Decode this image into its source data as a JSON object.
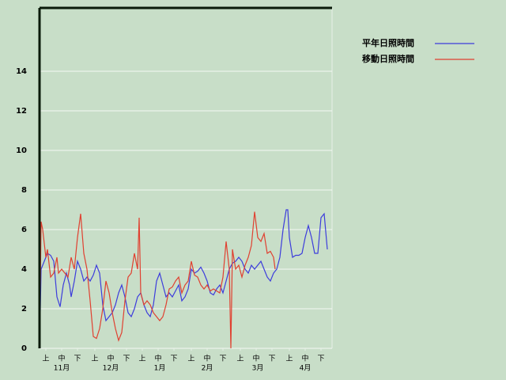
{
  "chart_data": {
    "type": "line",
    "xlim": [
      0,
      185
    ],
    "ylim": [
      0,
      17.2
    ],
    "yticks": [
      0,
      2,
      4,
      6,
      8,
      10,
      12,
      14
    ],
    "grid": true,
    "xticks": [
      {
        "value": 4,
        "label": "上"
      },
      {
        "value": 14,
        "label": "中"
      },
      {
        "value": 24,
        "label": "下"
      },
      {
        "value": 35,
        "label": "上"
      },
      {
        "value": 45,
        "label": "中"
      },
      {
        "value": 55,
        "label": "下"
      },
      {
        "value": 65,
        "label": "上"
      },
      {
        "value": 75,
        "label": "中"
      },
      {
        "value": 85,
        "label": "下"
      },
      {
        "value": 96,
        "label": "上"
      },
      {
        "value": 106,
        "label": "中"
      },
      {
        "value": 116,
        "label": "下"
      },
      {
        "value": 127,
        "label": "上"
      },
      {
        "value": 137,
        "label": "中"
      },
      {
        "value": 147,
        "label": "下"
      },
      {
        "value": 158,
        "label": "上"
      },
      {
        "value": 168,
        "label": "中"
      },
      {
        "value": 178,
        "label": "下"
      }
    ],
    "month_labels": [
      {
        "value": 14,
        "label": "11月"
      },
      {
        "value": 45,
        "label": "12月"
      },
      {
        "value": 76,
        "label": "1月"
      },
      {
        "value": 106,
        "label": "2月"
      },
      {
        "value": 138,
        "label": "3月"
      },
      {
        "value": 168,
        "label": "4月"
      }
    ],
    "legend": "top-right",
    "series": [
      {
        "name": "平年日照時間",
        "color": "#3c3cdc",
        "x": [
          0,
          1,
          3,
          5,
          7,
          9,
          11,
          13,
          15,
          17,
          19,
          20,
          22,
          24,
          26,
          28,
          30,
          32,
          34,
          36,
          38,
          40,
          42,
          44,
          46,
          48,
          50,
          52,
          54,
          56,
          58,
          60,
          62,
          64,
          66,
          68,
          70,
          72,
          74,
          76,
          78,
          80,
          82,
          84,
          86,
          88,
          90,
          92,
          94,
          96,
          98,
          100,
          102,
          104,
          106,
          108,
          110,
          112,
          114,
          116,
          118,
          120,
          122,
          124,
          126,
          128,
          130,
          132,
          134,
          136,
          138,
          140,
          142,
          144,
          146,
          148,
          150,
          152,
          154,
          156,
          157,
          158,
          160,
          162,
          164,
          166,
          168,
          170,
          172,
          174,
          176,
          178,
          180,
          182
        ],
        "values": [
          0,
          4,
          4.4,
          4.8,
          4.7,
          4.4,
          2.6,
          2.1,
          3.2,
          3.8,
          3.2,
          2.6,
          3.4,
          4.4,
          4,
          3.4,
          3.6,
          3.4,
          3.7,
          4.2,
          3.8,
          2.2,
          1.4,
          1.6,
          1.8,
          2.2,
          2.8,
          3.2,
          2.6,
          1.8,
          1.6,
          2,
          2.6,
          2.8,
          2.2,
          1.8,
          1.6,
          2.2,
          3.4,
          3.8,
          3.2,
          2.6,
          2.8,
          2.6,
          2.9,
          3.2,
          2.4,
          2.6,
          3,
          4,
          3.8,
          3.9,
          4.1,
          3.8,
          3.4,
          2.8,
          2.7,
          3,
          3.2,
          2.8,
          3.4,
          4,
          4.3,
          4.4,
          4.6,
          4.4,
          4,
          3.8,
          4.2,
          4,
          4.2,
          4.4,
          4,
          3.6,
          3.4,
          3.8,
          4,
          4.6,
          6,
          7,
          7,
          5.6,
          4.6,
          4.7,
          4.7,
          4.8,
          5.6,
          6.2,
          5.6,
          4.8,
          4.8,
          6.6,
          6.8,
          5
        ]
      },
      {
        "name": "移動日照時間",
        "color": "#e04030",
        "x": [
          0,
          1,
          2,
          4,
          5,
          7,
          9,
          11,
          12,
          14,
          16,
          18,
          20,
          22,
          24,
          26,
          28,
          30,
          32,
          34,
          36,
          38,
          40,
          42,
          44,
          46,
          48,
          50,
          52,
          54,
          56,
          58,
          60,
          62,
          63,
          64,
          66,
          68,
          70,
          72,
          74,
          76,
          78,
          80,
          82,
          84,
          86,
          88,
          90,
          92,
          94,
          96,
          98,
          100,
          102,
          104,
          106,
          108,
          110,
          112,
          114,
          116,
          118,
          120,
          121,
          122,
          124,
          126,
          128,
          130,
          132,
          134,
          136,
          138,
          140,
          142,
          144,
          146,
          148,
          149
        ],
        "values": [
          0,
          6.4,
          6,
          4.6,
          5,
          3.6,
          3.8,
          4.6,
          3.8,
          4,
          3.8,
          3.6,
          4.6,
          4,
          5.6,
          6.8,
          4.8,
          4,
          2.4,
          0.6,
          0.5,
          1,
          2,
          3.4,
          2.8,
          1.8,
          1,
          0.4,
          0.8,
          2.4,
          3.6,
          3.8,
          4.8,
          4,
          6.6,
          2.8,
          2.2,
          2.4,
          2.2,
          1.8,
          1.6,
          1.4,
          1.6,
          2.2,
          3,
          3.1,
          3.4,
          3.6,
          2.8,
          3.2,
          3.4,
          4.4,
          3.7,
          3.6,
          3.2,
          3,
          3.2,
          2.9,
          3,
          2.9,
          2.8,
          3.6,
          5.4,
          4,
          0,
          5,
          4,
          4.2,
          3.6,
          4.2,
          4.6,
          5.2,
          6.9,
          5.6,
          5.4,
          5.8,
          4.8,
          4.9,
          4.6,
          4
        ]
      }
    ]
  }
}
